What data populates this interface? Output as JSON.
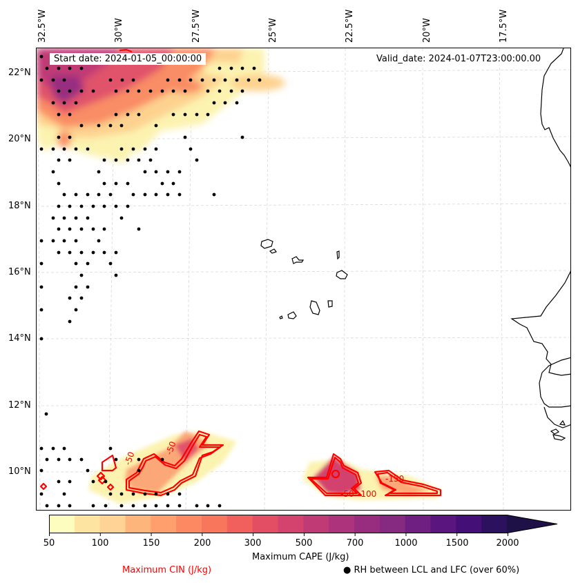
{
  "map": {
    "start_date_label": "Start date: 2024-01-05_00:00:00",
    "valid_date_label": "Valid_date: 2024-01-07T23:00:00.00",
    "lon_ticks": [
      "32.5°W",
      "30°W",
      "27.5°W",
      "25°W",
      "22.5°W",
      "20°W",
      "17.5°W"
    ],
    "lat_ticks": [
      "22°N",
      "20°N",
      "18°N",
      "16°N",
      "14°N",
      "12°N",
      "10°N"
    ],
    "extent": {
      "lon_min": -32.6,
      "lon_max": -15.2,
      "lat_min": 8.9,
      "lat_max": 22.7
    },
    "cin_contour_labels": [
      "-50",
      "-50",
      "-100",
      "-50",
      "-100",
      "-150"
    ],
    "coastline_color": "#000000",
    "cin_color": "#ff0000",
    "gridline_color": "#cccccc"
  },
  "colorbar": {
    "label": "Maximum CAPE (J/kg)",
    "ticks": [
      "50",
      "100",
      "150",
      "200",
      "300",
      "500",
      "700",
      "1000",
      "1500",
      "2000"
    ],
    "colors": [
      "#fcfdbf",
      "#fde4a0",
      "#fed395",
      "#feb57c",
      "#fe9f6d",
      "#fc8961",
      "#f8765c",
      "#f1605d",
      "#e34e65",
      "#d3436e",
      "#c03a76",
      "#ad347c",
      "#982d80",
      "#852981",
      "#6e1f81",
      "#5a167e",
      "#440f76",
      "#2c115f",
      "#1d1147"
    ],
    "extend": "max"
  },
  "legend": {
    "cin_label": "Maximum CIN (J/kg)",
    "rh_label": "RH between LCL and LFC (over 60%)",
    "rh_marker": "●"
  }
}
